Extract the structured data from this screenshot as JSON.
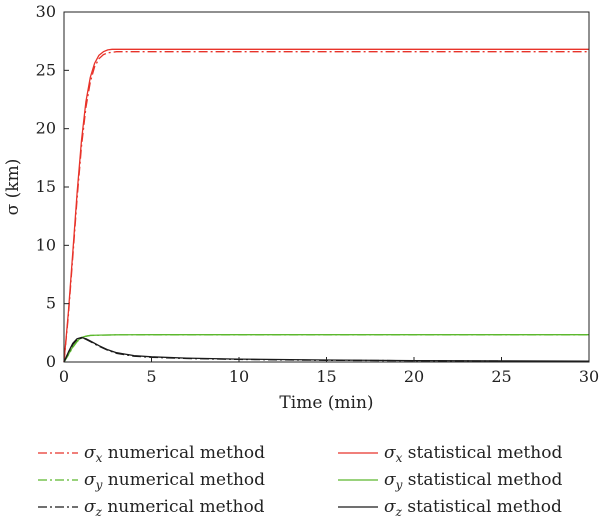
{
  "chart_data": {
    "type": "line",
    "title": "",
    "xlabel": "Time (min)",
    "ylabel": "σ (km)",
    "xlim": [
      0,
      30
    ],
    "ylim": [
      0,
      30
    ],
    "xticks": [
      0,
      5,
      10,
      15,
      20,
      25,
      30
    ],
    "yticks": [
      0,
      5,
      10,
      15,
      20,
      25,
      30
    ],
    "grid": false,
    "legend_position": "bottom",
    "series": [
      {
        "name": "σx numerical method",
        "symbol": "σ",
        "subscript": "x",
        "text": "numerical method",
        "color": "#e8332a",
        "style": "dashdot",
        "x": [
          0,
          0.25,
          0.5,
          0.75,
          1,
          1.25,
          1.5,
          1.75,
          2,
          2.25,
          2.5,
          2.75,
          3,
          5,
          10,
          15,
          20,
          25,
          30
        ],
        "y": [
          0,
          4,
          9,
          14,
          18.5,
          21.8,
          24.0,
          25.3,
          26.0,
          26.35,
          26.5,
          26.55,
          26.6,
          26.6,
          26.6,
          26.6,
          26.6,
          26.6,
          26.6
        ]
      },
      {
        "name": "σx statistical method",
        "symbol": "σ",
        "subscript": "x",
        "text": "statistical method",
        "color": "#e8332a",
        "style": "solid",
        "x": [
          0,
          0.25,
          0.5,
          0.75,
          1,
          1.25,
          1.5,
          1.75,
          2,
          2.25,
          2.5,
          2.75,
          3,
          5,
          10,
          15,
          20,
          25,
          30
        ],
        "y": [
          0,
          4.3,
          9.4,
          14.5,
          19,
          22.3,
          24.4,
          25.6,
          26.3,
          26.6,
          26.75,
          26.8,
          26.8,
          26.8,
          26.8,
          26.8,
          26.8,
          26.8,
          26.8
        ]
      },
      {
        "name": "σy numerical method",
        "symbol": "σ",
        "subscript": "y",
        "text": "numerical method",
        "color": "#5cb82e",
        "style": "dashdot",
        "x": [
          0,
          0.25,
          0.5,
          0.75,
          1,
          1.25,
          1.5,
          2,
          3,
          5,
          10,
          15,
          20,
          25,
          30
        ],
        "y": [
          0,
          0.6,
          1.25,
          1.75,
          2.05,
          2.2,
          2.27,
          2.3,
          2.32,
          2.33,
          2.33,
          2.33,
          2.33,
          2.33,
          2.33
        ],
        "hidden_under": true
      },
      {
        "name": "σy statistical method",
        "symbol": "σ",
        "subscript": "y",
        "text": "statistical method",
        "color": "#5cb82e",
        "style": "solid",
        "x": [
          0,
          0.25,
          0.5,
          0.75,
          1,
          1.25,
          1.5,
          2,
          3,
          5,
          10,
          15,
          20,
          25,
          30
        ],
        "y": [
          0,
          0.65,
          1.3,
          1.8,
          2.1,
          2.22,
          2.28,
          2.31,
          2.33,
          2.34,
          2.34,
          2.34,
          2.34,
          2.34,
          2.34
        ]
      },
      {
        "name": "σz numerical method",
        "symbol": "σ",
        "subscript": "z",
        "text": "numerical method",
        "color": "#1a1a1a",
        "style": "dashdot",
        "x": [
          0,
          0.25,
          0.5,
          0.75,
          1,
          1.25,
          1.5,
          2,
          2.5,
          3,
          4,
          5,
          7,
          10,
          15,
          20,
          25,
          30
        ],
        "y": [
          0,
          0.8,
          1.5,
          1.95,
          2.05,
          1.95,
          1.75,
          1.35,
          1.0,
          0.75,
          0.5,
          0.4,
          0.3,
          0.22,
          0.15,
          0.11,
          0.08,
          0.06
        ]
      },
      {
        "name": "σz statistical method",
        "symbol": "σ",
        "subscript": "z",
        "text": "statistical method",
        "color": "#1a1a1a",
        "style": "solid",
        "x": [
          0,
          0.25,
          0.5,
          0.75,
          1,
          1.25,
          1.5,
          2,
          2.5,
          3,
          4,
          5,
          7,
          10,
          15,
          20,
          25,
          30
        ],
        "y": [
          0,
          0.85,
          1.6,
          2.0,
          2.1,
          2.0,
          1.8,
          1.4,
          1.05,
          0.8,
          0.55,
          0.45,
          0.33,
          0.25,
          0.17,
          0.12,
          0.09,
          0.07
        ]
      }
    ]
  }
}
